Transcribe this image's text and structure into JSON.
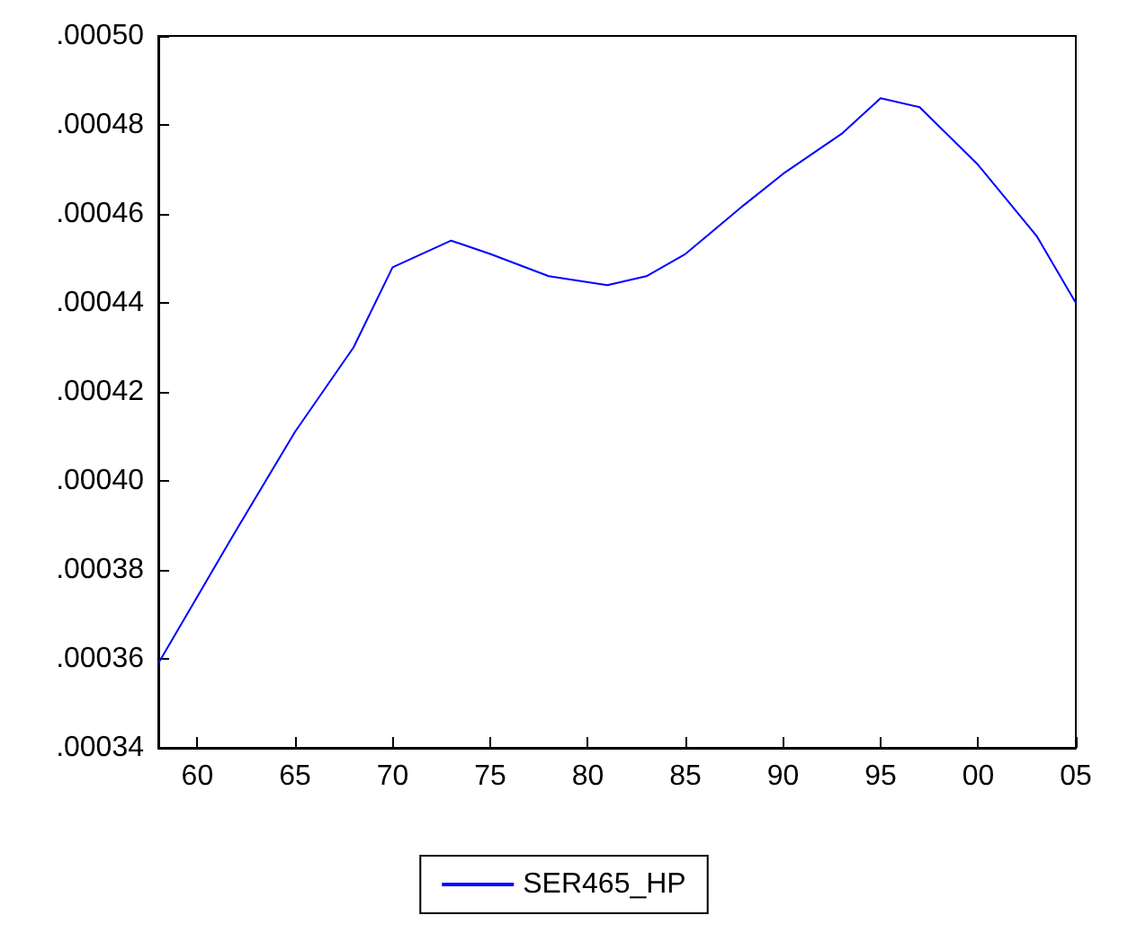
{
  "chart_data": {
    "type": "line",
    "x": [
      1958,
      1960,
      1962,
      1965,
      1968,
      1970,
      1973,
      1975,
      1978,
      1981,
      1983,
      1985,
      1988,
      1990,
      1993,
      1995,
      1997,
      2000,
      2003,
      2005
    ],
    "series": [
      {
        "name": "SER465_HP",
        "color": "#0000ff",
        "values": [
          0.000359,
          0.000374,
          0.000389,
          0.000411,
          0.00043,
          0.000448,
          0.000454,
          0.000451,
          0.000446,
          0.000444,
          0.000446,
          0.000451,
          0.000462,
          0.000469,
          0.000478,
          0.000486,
          0.000484,
          0.000471,
          0.000455,
          0.00044
        ]
      }
    ],
    "xlim": [
      1958,
      2005
    ],
    "xticks": [
      {
        "value": 1960,
        "label": "60"
      },
      {
        "value": 1965,
        "label": "65"
      },
      {
        "value": 1970,
        "label": "70"
      },
      {
        "value": 1975,
        "label": "75"
      },
      {
        "value": 1980,
        "label": "80"
      },
      {
        "value": 1985,
        "label": "85"
      },
      {
        "value": 1990,
        "label": "90"
      },
      {
        "value": 1995,
        "label": "95"
      },
      {
        "value": 2000,
        "label": "00"
      },
      {
        "value": 2005,
        "label": "05"
      }
    ],
    "ylim": [
      0.00034,
      0.0005
    ],
    "yticks": [
      {
        "value": 0.00034,
        "label": ".00034"
      },
      {
        "value": 0.00036,
        "label": ".00036"
      },
      {
        "value": 0.00038,
        "label": ".00038"
      },
      {
        "value": 0.0004,
        "label": ".00040"
      },
      {
        "value": 0.00042,
        "label": ".00042"
      },
      {
        "value": 0.00044,
        "label": ".00044"
      },
      {
        "value": 0.00046,
        "label": ".00046"
      },
      {
        "value": 0.00048,
        "label": ".00048"
      },
      {
        "value": 0.0005,
        "label": ".00050"
      }
    ],
    "grid": false,
    "legend": "bottom",
    "marker": "none",
    "line_style": "solid"
  }
}
